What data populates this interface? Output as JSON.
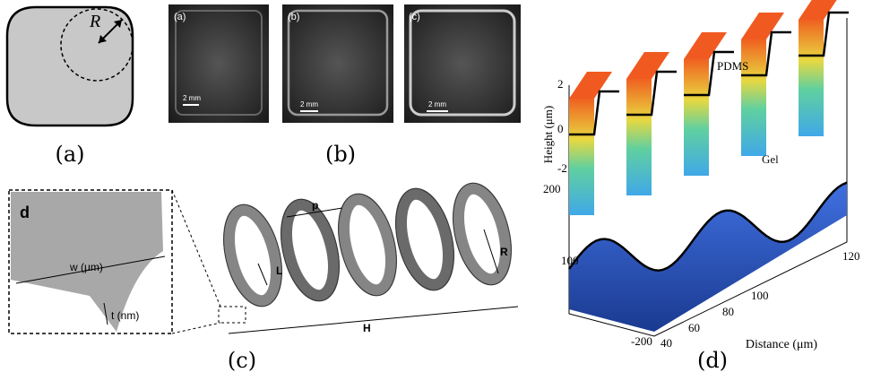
{
  "panel_a": {
    "caption": "(a)",
    "radius_label": "R"
  },
  "panel_b": {
    "caption": "(b)",
    "photos": [
      {
        "label": "(a)",
        "scale": "2 mm"
      },
      {
        "label": "(b)",
        "scale": "2 mm"
      },
      {
        "label": "(c)",
        "scale": "2 mm"
      }
    ]
  },
  "panel_c": {
    "caption": "(c)",
    "inset": {
      "letter": "d",
      "width": "w (μm)",
      "thickness": "t (nm)"
    },
    "helix": {
      "pitch": "p",
      "length": "L",
      "radius": "R",
      "height": "H"
    }
  },
  "panel_d": {
    "caption": "(d)",
    "surface_labels": [
      "PDMS",
      "Gel"
    ],
    "z_axis": {
      "label": "Height (μm)",
      "ticks": [
        "2",
        "0",
        "-2"
      ]
    },
    "y_axis": {
      "ticks": [
        "200",
        "100",
        "-200"
      ]
    },
    "x_axis": {
      "label": "Distance (μm)",
      "ticks": [
        "40",
        "60",
        "80",
        "100",
        "120"
      ]
    }
  }
}
